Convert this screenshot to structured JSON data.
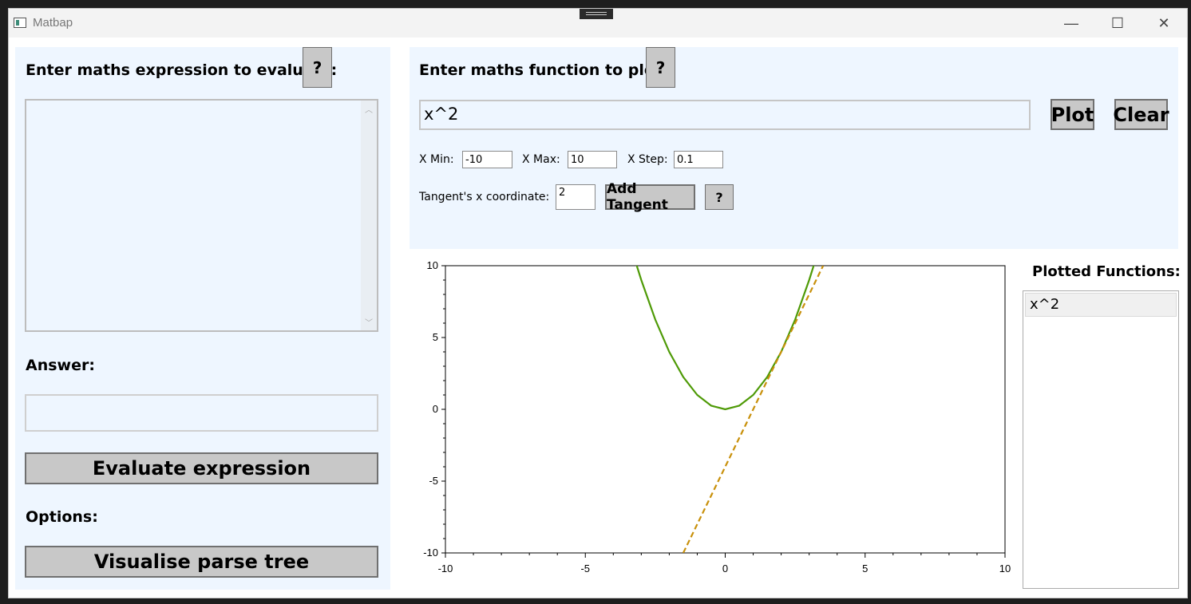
{
  "window": {
    "title": "Matbap",
    "minimize": "—",
    "maximize": "☐",
    "close": "✕"
  },
  "left": {
    "heading": "Enter maths expression to evaluate:",
    "help": "?",
    "expression_value": "",
    "answer_label": "Answer:",
    "answer_value": "",
    "evaluate_label": "Evaluate expression",
    "options_label": "Options:",
    "parse_tree_label": "Visualise parse tree"
  },
  "plot": {
    "heading": "Enter maths function to plot:",
    "help": "?",
    "function_value": "x^2",
    "plot_label": "Plot",
    "clear_label": "Clear",
    "xmin_label": "X Min:",
    "xmin_value": "-10",
    "xmax_label": "X Max:",
    "xmax_value": "10",
    "xstep_label": "X Step:",
    "xstep_value": "0.1",
    "tangent_label": "Tangent's x coordinate:",
    "tangent_value": "2",
    "add_tangent_label": "Add Tangent",
    "tangent_help": "?"
  },
  "plotted": {
    "title": "Plotted Functions:",
    "items": [
      "x^2"
    ]
  },
  "chart_data": {
    "type": "line",
    "title": "",
    "xlabel": "",
    "ylabel": "",
    "xlim": [
      -10,
      10
    ],
    "ylim": [
      -10,
      10
    ],
    "xticks": [
      "-10",
      "-5",
      "0",
      "5",
      "10"
    ],
    "yticks": [
      "10",
      "5",
      "0",
      "-5",
      "-10"
    ],
    "grid": false,
    "series": [
      {
        "x": [
          -3.2,
          -3,
          -2.5,
          -2,
          -1.5,
          -1,
          -0.5,
          0,
          0.5,
          1,
          1.5,
          2,
          2.5,
          3,
          3.2
        ],
        "y": [
          10.24,
          9,
          6.25,
          4,
          2.25,
          1,
          0.25,
          0,
          0.25,
          1,
          2.25,
          4,
          6.25,
          9,
          10.24
        ],
        "color": "#4e9a06",
        "style": "solid"
      },
      {
        "x": [
          -1.5,
          0,
          2,
          3.5
        ],
        "y": [
          -10,
          -4,
          4,
          10
        ],
        "color": "#c8900a",
        "style": "dashed"
      }
    ]
  }
}
